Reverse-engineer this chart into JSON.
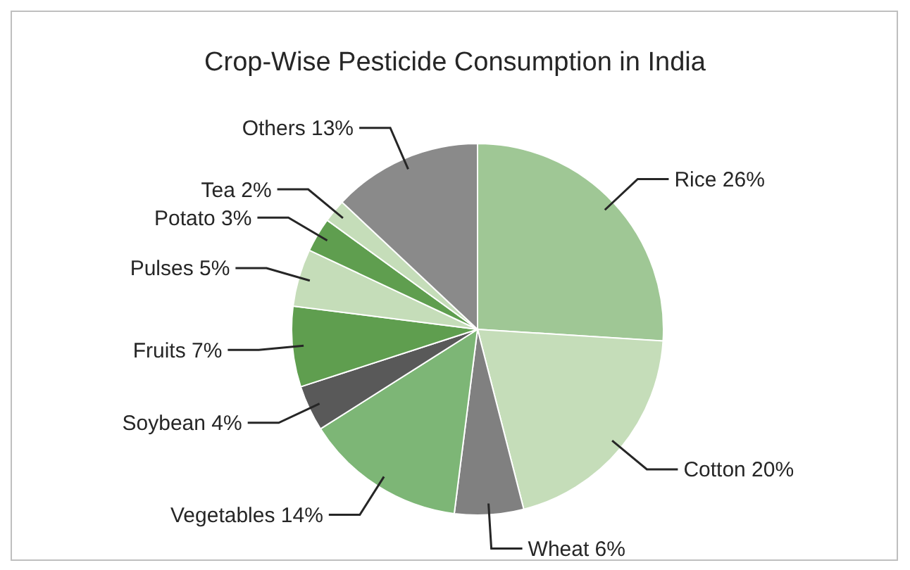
{
  "chart_data": {
    "type": "pie",
    "title": "Crop-Wise Pesticide Consumption in India",
    "categories": [
      "Rice",
      "Cotton",
      "Wheat",
      "Vegetables",
      "Soybean",
      "Fruits",
      "Pulses",
      "Potato",
      "Tea",
      "Others"
    ],
    "values": [
      26,
      20,
      6,
      14,
      4,
      7,
      5,
      3,
      2,
      13
    ],
    "value_labels": [
      "26%",
      "20%",
      "6%",
      "14%",
      "4%",
      "7%",
      "5%",
      "3%",
      "2%",
      "13%"
    ],
    "colors": [
      "#9fc795",
      "#c5ddb9",
      "#808080",
      "#7db676",
      "#595959",
      "#5f9e4f",
      "#c5ddb9",
      "#5f9e4f",
      "#c5ddb9",
      "#8a8a8a"
    ]
  }
}
